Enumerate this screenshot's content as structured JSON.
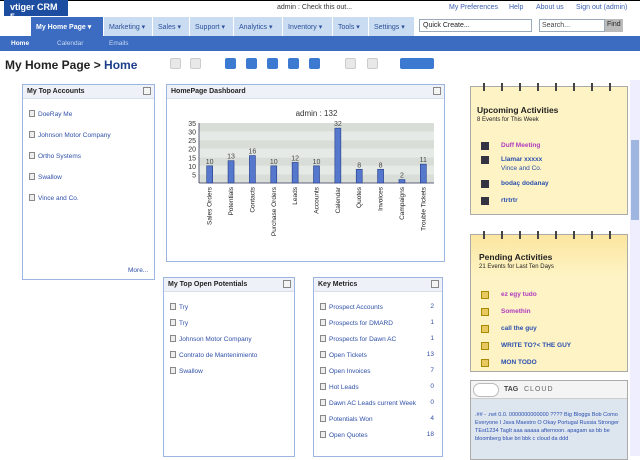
{
  "app": {
    "logo": "vtiger CRM 5",
    "message": "admin : Check this out...",
    "links": [
      "My Preferences",
      "Help",
      "About us",
      "Sign out (admin)"
    ]
  },
  "nav": {
    "tabs": [
      "My Home Page ▾",
      "Marketing ▾",
      "Sales ▾",
      "Support ▾",
      "Analytics ▾",
      "Inventory ▾",
      "Tools ▾",
      "Settings ▾"
    ],
    "quick_create": "Quick Create...",
    "search_placeholder": "Search...",
    "find": "Find"
  },
  "subnav": [
    "Home",
    "Calendar",
    "Emails"
  ],
  "title": {
    "prefix": "My Home Page >",
    "current": "Home"
  },
  "top_accounts": {
    "title": "My Top Accounts",
    "items": [
      "DoeRay Me",
      "Johnson Motor Company",
      "Ortho Systems",
      "Swallow",
      "Vince and Co."
    ],
    "more": "More..."
  },
  "dashboard": {
    "title": "HomePage Dashboard"
  },
  "chart_data": {
    "type": "bar",
    "title": "admin : 132",
    "categories": [
      "Sales Orders",
      "Potentials",
      "Contacts",
      "Purchase Orders",
      "Leads",
      "Accounts",
      "Calendar",
      "Quotes",
      "Invoices",
      "Campaigns",
      "Trouble Tickets"
    ],
    "values": [
      10,
      13,
      16,
      10,
      12,
      10,
      32,
      8,
      8,
      2,
      11
    ],
    "ylim": [
      0,
      35
    ],
    "yticks": [
      5,
      10,
      15,
      20,
      25,
      30,
      35
    ],
    "grid": true
  },
  "potentials": {
    "title": "My Top Open Potentials",
    "items": [
      "Try",
      "Try",
      "Johnson Motor Company",
      "Contrato de Mantenimiento",
      "Swallow"
    ]
  },
  "metrics": {
    "title": "Key Metrics",
    "items": [
      {
        "label": "Prospect Accounts",
        "value": "2"
      },
      {
        "label": "Prospects for DMARD",
        "value": "1"
      },
      {
        "label": "Prospects for Dawn AC",
        "value": "1"
      },
      {
        "label": "Open Tickets",
        "value": "13"
      },
      {
        "label": "Open Invoices",
        "value": "7"
      },
      {
        "label": "Hot Leads",
        "value": "0"
      },
      {
        "label": "Dawn AC Leads current Week",
        "value": "0"
      },
      {
        "label": "Potentials Won",
        "value": "4"
      },
      {
        "label": "Open Quotes",
        "value": "18"
      }
    ]
  },
  "upcoming": {
    "title": "Upcoming Activities",
    "subtitle": "8 Events for This Week",
    "items": [
      {
        "label": "Duff Meeting",
        "sub": "",
        "color": "#b03cc0"
      },
      {
        "label": "Llamar xxxxx",
        "sub": "Vince and Co.",
        "color": "#2a4fb0"
      },
      {
        "label": "bodaç dodanay",
        "sub": "",
        "color": "#2a4fb0"
      },
      {
        "label": "rtrtrtr",
        "sub": "",
        "color": "#2a4fb0"
      }
    ]
  },
  "pending": {
    "title": "Pending Activities",
    "subtitle": "21 Events for Last Ten Days",
    "items": [
      {
        "label": "ez egy tudo",
        "color": "#b03cc0"
      },
      {
        "label": "Somethin",
        "color": "#b03cc0"
      },
      {
        "label": "call the guy",
        "color": "#2a4fb0"
      },
      {
        "label": "WRITE TO?< THE GUY",
        "color": "#2a4fb0"
      },
      {
        "label": "MON TODO",
        "color": "#2a4fb0"
      }
    ]
  },
  "tagcloud": {
    "title": "TAG",
    "title2": "CLOUD",
    "text": ".## - .net 0.0. 0000000000000 ???? Big Bloggs Bob Como Everyone I Java Maestro O Okay Portugal Russia Stronger TEst1234 TagIt aaa aaaaa afternoon. apagam as bb be bloomberg blue bri bbk c cloud da ddd"
  }
}
